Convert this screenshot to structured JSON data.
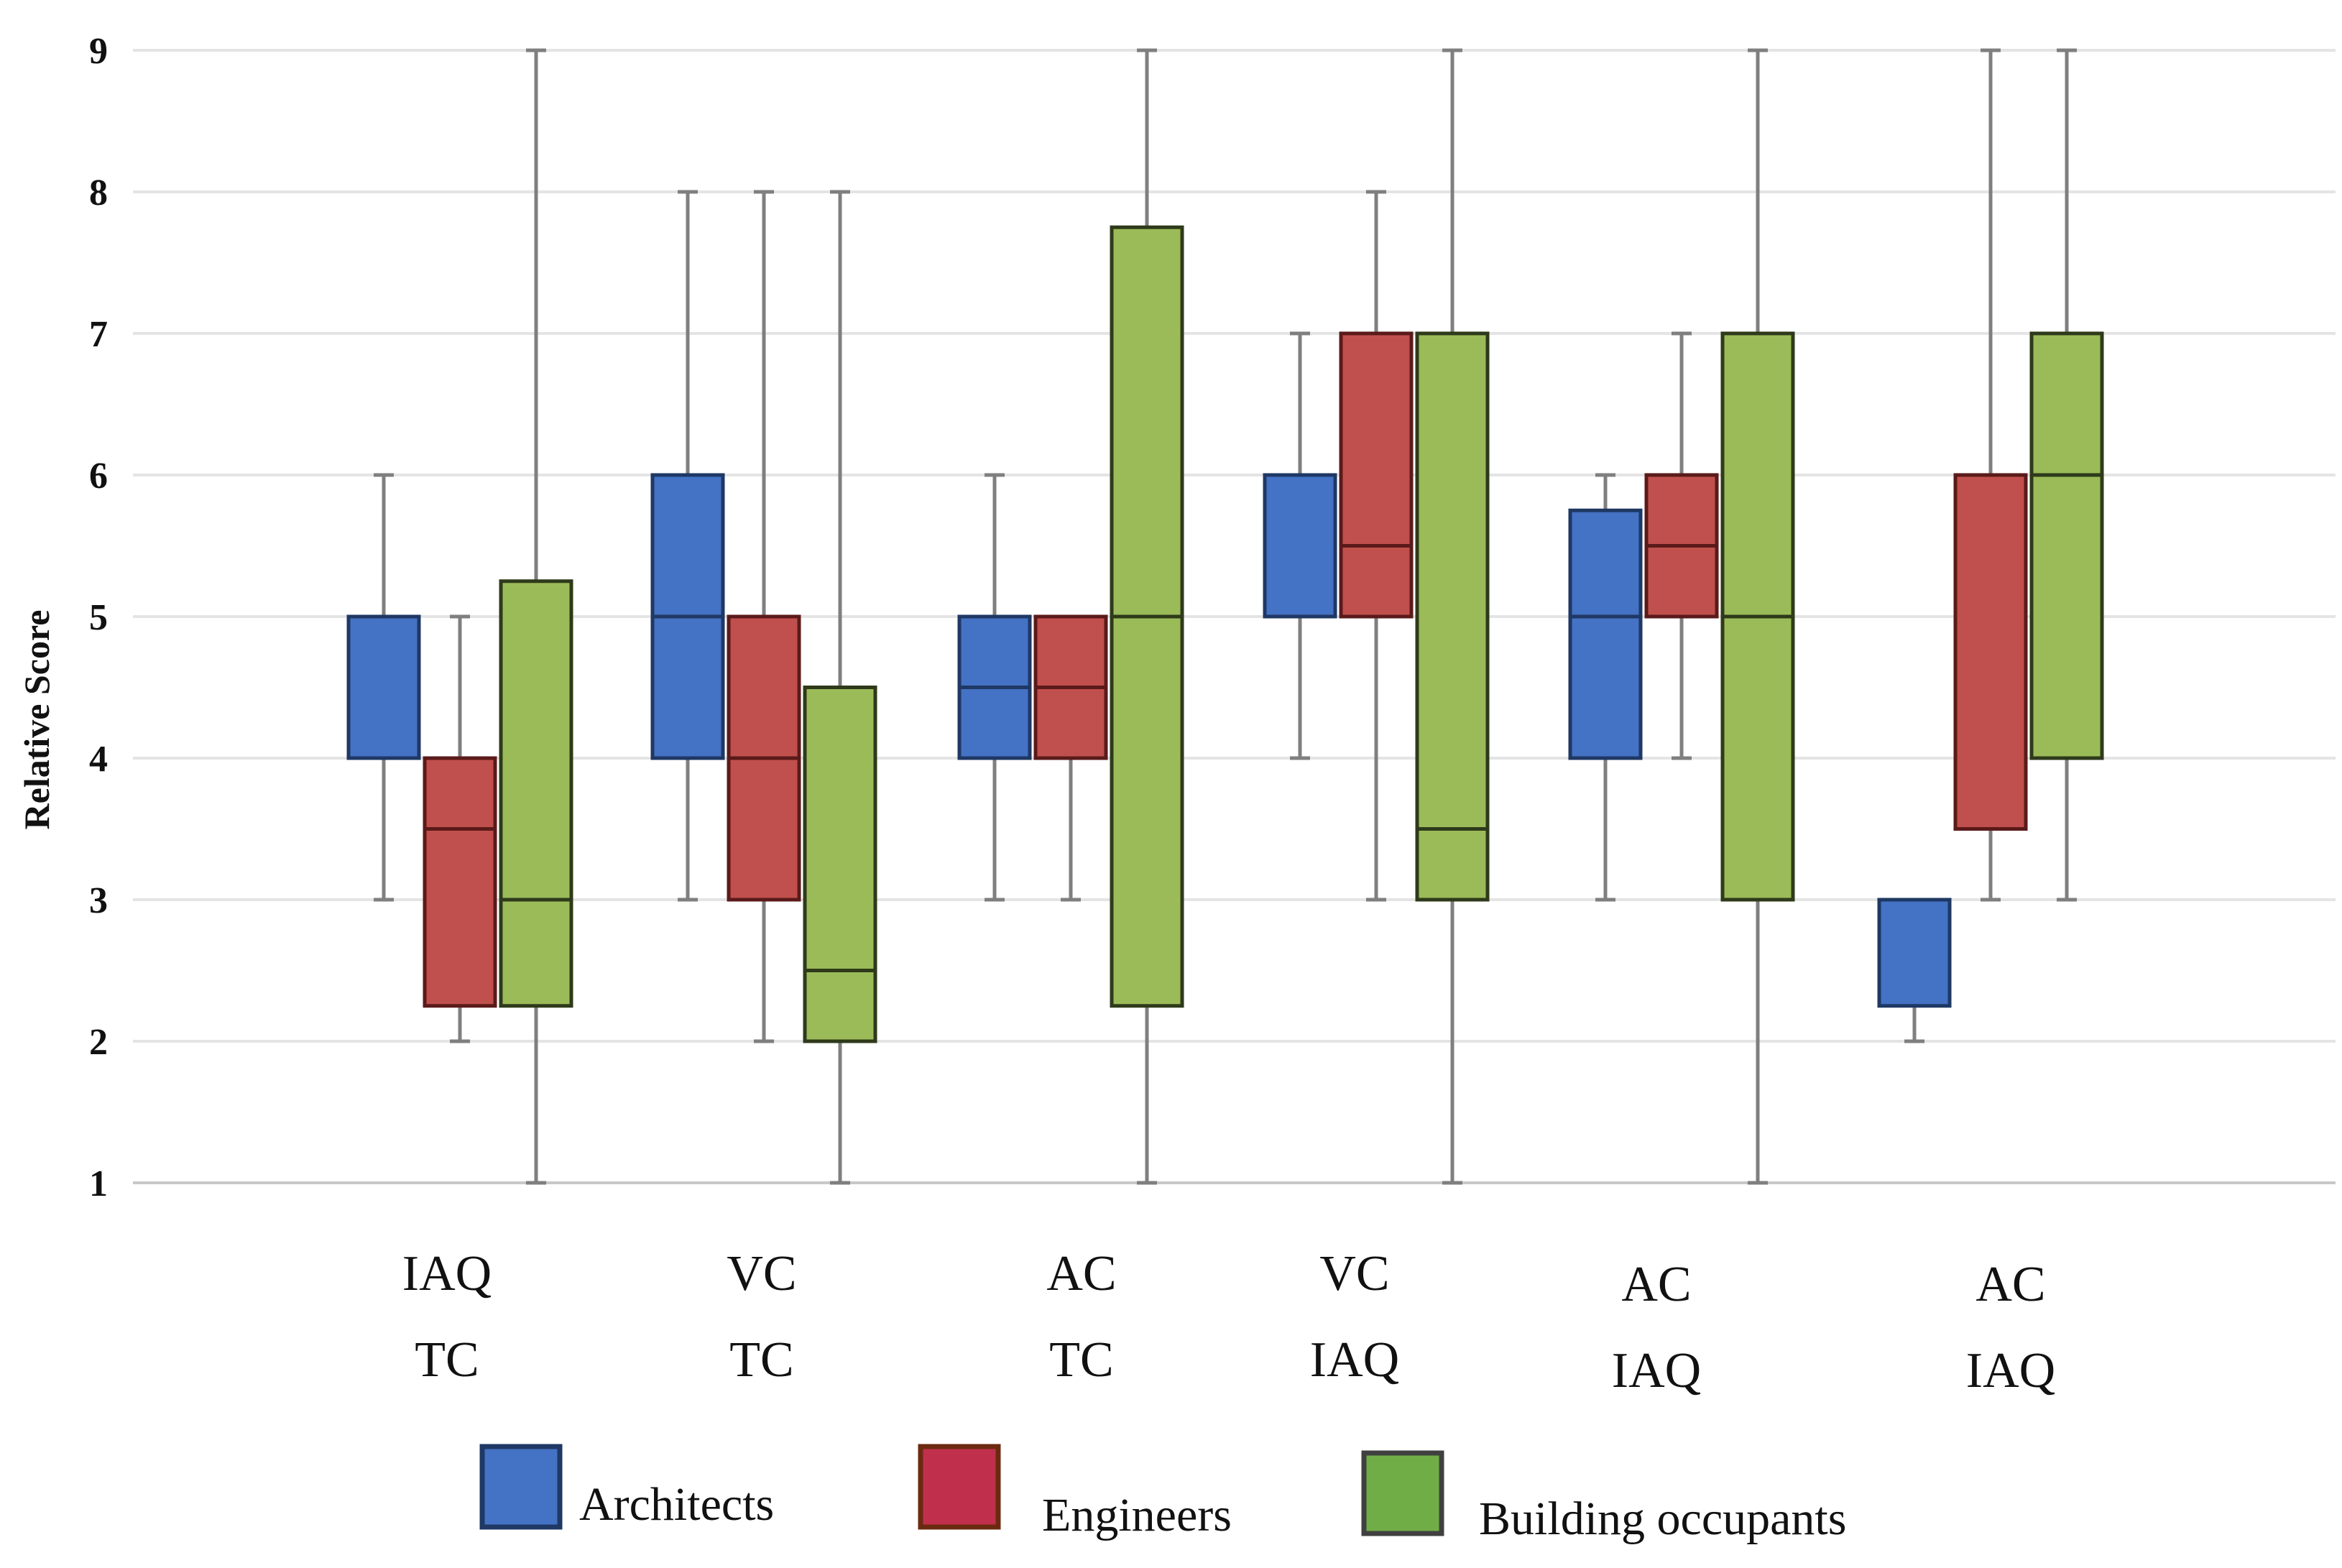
{
  "chart_data": {
    "type": "box",
    "title": "",
    "ylabel": "Relative Score",
    "xlabel": "",
    "ylim": [
      1,
      9
    ],
    "yticks": [
      "1",
      "2",
      "3",
      "4",
      "5",
      "6",
      "7",
      "8",
      "9"
    ],
    "grid": true,
    "legend_position": "bottom",
    "categories": [
      {
        "top": "IAQ",
        "bottom": "TC"
      },
      {
        "top": "VC",
        "bottom": "TC"
      },
      {
        "top": "AC",
        "bottom": "TC"
      },
      {
        "top": "VC",
        "bottom": "IAQ"
      },
      {
        "top": "AC",
        "bottom": "IAQ"
      },
      {
        "top": "AC",
        "bottom": "IAQ"
      }
    ],
    "series": [
      {
        "name": "Architects",
        "color": "#4472c4",
        "edge": "#1f3864",
        "boxes": [
          {
            "min": 3,
            "q1": 4,
            "median": 4,
            "q3": 5,
            "max": 6
          },
          {
            "min": 3,
            "q1": 4,
            "median": 5,
            "q3": 6,
            "max": 8
          },
          {
            "min": 3,
            "q1": 4,
            "median": 4.5,
            "q3": 5,
            "max": 6
          },
          {
            "min": 4,
            "q1": 5,
            "median": 5,
            "q3": 6,
            "max": 7
          },
          {
            "min": 3,
            "q1": 4,
            "median": 5,
            "q3": 5.75,
            "max": 6
          },
          {
            "min": 2,
            "q1": 2.25,
            "median": 3,
            "q3": 3,
            "max": 3
          }
        ]
      },
      {
        "name": "Engineers",
        "color": "#c0504d",
        "edge": "#5b1a1a",
        "boxes": [
          {
            "min": 2,
            "q1": 2.25,
            "median": 3.5,
            "q3": 4,
            "max": 5
          },
          {
            "min": 2,
            "q1": 3,
            "median": 4,
            "q3": 5,
            "max": 8
          },
          {
            "min": 3,
            "q1": 4,
            "median": 4.5,
            "q3": 5,
            "max": 5
          },
          {
            "min": 3,
            "q1": 5,
            "median": 5.5,
            "q3": 7,
            "max": 8
          },
          {
            "min": 4,
            "q1": 5,
            "median": 5.5,
            "q3": 6,
            "max": 7
          },
          {
            "min": 3,
            "q1": 3.5,
            "median": 6,
            "q3": 6,
            "max": 9
          }
        ]
      },
      {
        "name": "Building occupants",
        "color": "#9bbb59",
        "edge": "#2e3a1a",
        "boxes": [
          {
            "min": 1,
            "q1": 2.25,
            "median": 3,
            "q3": 5.25,
            "max": 9
          },
          {
            "min": 1,
            "q1": 2,
            "median": 2.5,
            "q3": 4.5,
            "max": 8
          },
          {
            "min": 1,
            "q1": 2.25,
            "median": 5,
            "q3": 7.75,
            "max": 9
          },
          {
            "min": 1,
            "q1": 3,
            "median": 3.5,
            "q3": 7,
            "max": 9
          },
          {
            "min": 1,
            "q1": 3,
            "median": 5,
            "q3": 7,
            "max": 9
          },
          {
            "min": 3,
            "q1": 4,
            "median": 6,
            "q3": 7,
            "max": 9
          }
        ]
      }
    ],
    "legend": [
      {
        "label": "Architects",
        "fill": "#4472c4",
        "stroke": "#1f3864"
      },
      {
        "label": "Engineers",
        "fill": "#c0304d",
        "stroke": "#6b2a10"
      },
      {
        "label": "Building occupants",
        "fill": "#70ad47",
        "stroke": "#404040"
      }
    ]
  }
}
